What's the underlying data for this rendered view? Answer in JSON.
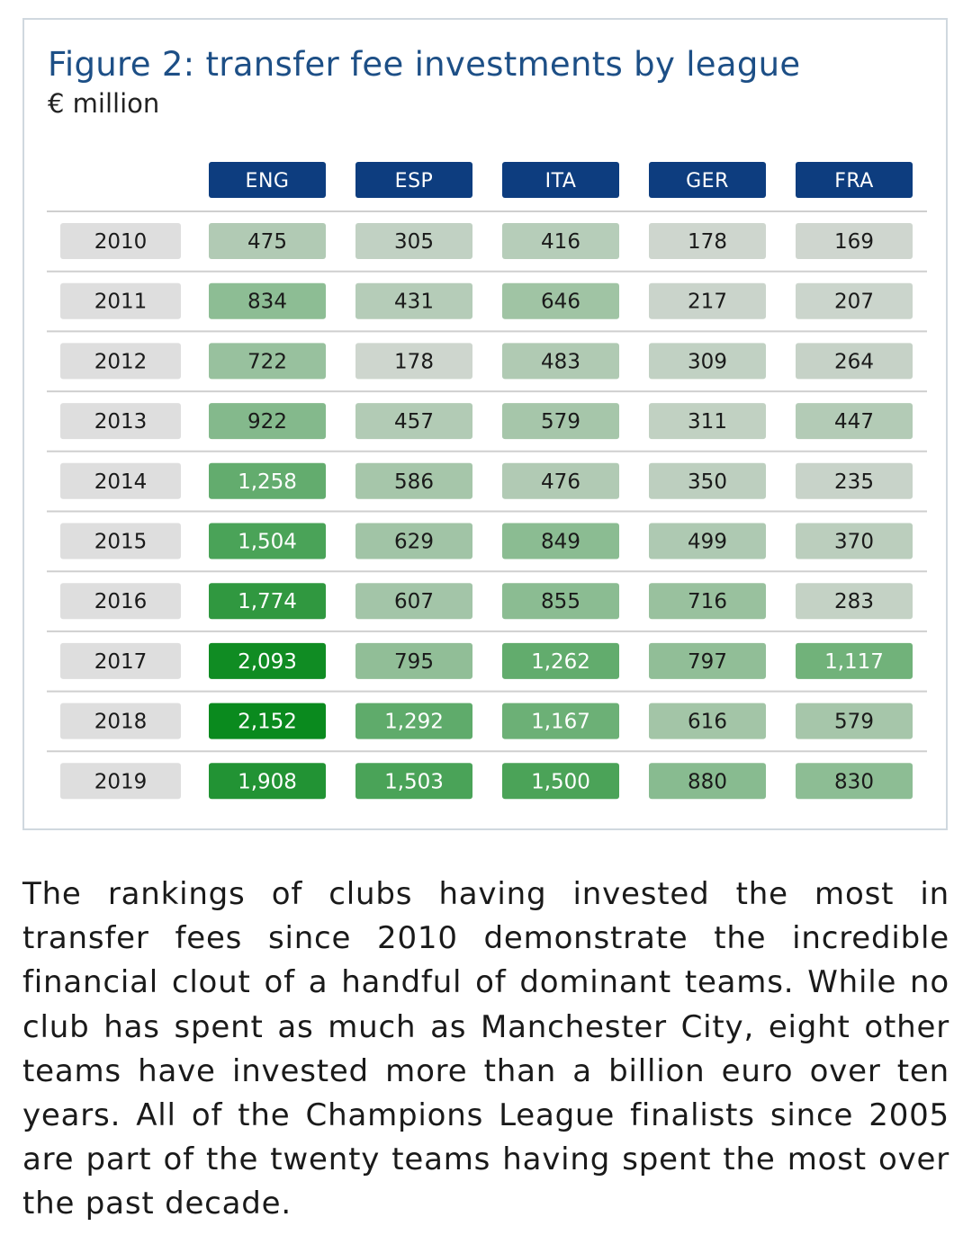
{
  "figure": {
    "title": "Figure 2: transfer fee investments by league",
    "subtitle": "€ million"
  },
  "colors": {
    "header_bg": "#0d3d7f",
    "header_text": "#ffffff",
    "year_bg": "#dedede",
    "separator": "#cfcfcf",
    "scale_low": "#cfd6cf",
    "scale_high": "#0a8a1e"
  },
  "chart_data": {
    "type": "heatmap",
    "title": "Figure 2: transfer fee investments by league",
    "subtitle": "€ million",
    "columns": [
      "ENG",
      "ESP",
      "ITA",
      "GER",
      "FRA"
    ],
    "rows": [
      "2010",
      "2011",
      "2012",
      "2013",
      "2014",
      "2015",
      "2016",
      "2017",
      "2018",
      "2019"
    ],
    "values": [
      [
        475,
        305,
        416,
        178,
        169
      ],
      [
        834,
        431,
        646,
        217,
        207
      ],
      [
        722,
        178,
        483,
        309,
        264
      ],
      [
        922,
        457,
        579,
        311,
        447
      ],
      [
        1258,
        586,
        476,
        350,
        235
      ],
      [
        1504,
        629,
        849,
        499,
        370
      ],
      [
        1774,
        607,
        855,
        716,
        283
      ],
      [
        2093,
        795,
        1262,
        797,
        1117
      ],
      [
        2152,
        1292,
        1167,
        616,
        579
      ],
      [
        1908,
        1503,
        1500,
        880,
        830
      ]
    ],
    "labels": [
      [
        "475",
        "305",
        "416",
        "178",
        "169"
      ],
      [
        "834",
        "431",
        "646",
        "217",
        "207"
      ],
      [
        "722",
        "178",
        "483",
        "309",
        "264"
      ],
      [
        "922",
        "457",
        "579",
        "311",
        "447"
      ],
      [
        "1,258",
        "586",
        "476",
        "350",
        "235"
      ],
      [
        "1,504",
        "629",
        "849",
        "499",
        "370"
      ],
      [
        "1,774",
        "607",
        "855",
        "716",
        "283"
      ],
      [
        "2,093",
        "795",
        "1,262",
        "797",
        "1,117"
      ],
      [
        "2,152",
        "1,292",
        "1,167",
        "616",
        "579"
      ],
      [
        "1,908",
        "1,503",
        "1,500",
        "880",
        "830"
      ]
    ]
  },
  "body_text": "The rankings of clubs having invested the most in transfer fees since 2010 demonstrate the incredible financial clout of a handful of dominant teams. While no club has spent as much as Manchester City, eight other teams have invested more than a billion euro over ten years. All of the Champions League finalists since 2005 are part of the twenty teams having spent the most over the past decade."
}
